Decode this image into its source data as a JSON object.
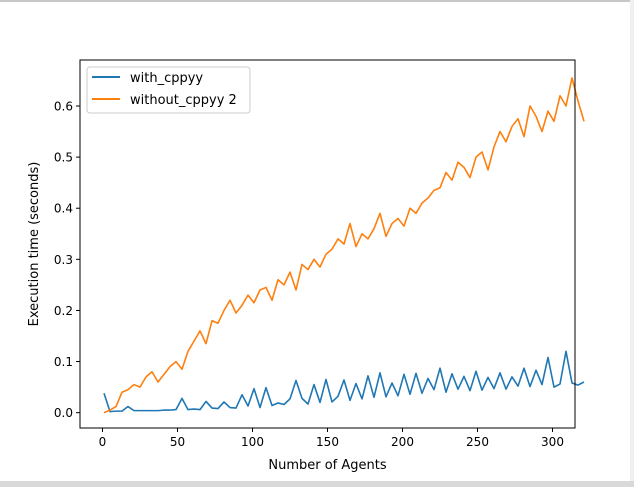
{
  "chart_data": {
    "type": "line",
    "title": "",
    "xlabel": "Number of Agents",
    "ylabel": "Execution time (seconds)",
    "xlim": [
      -15,
      315
    ],
    "ylim": [
      -0.03,
      0.69
    ],
    "xticks": [
      0,
      50,
      100,
      150,
      200,
      250,
      300
    ],
    "xtick_labels": [
      "0",
      "50",
      "100",
      "150",
      "200",
      "250",
      "300"
    ],
    "yticks": [
      0.0,
      0.1,
      0.2,
      0.3,
      0.4,
      0.5,
      0.6
    ],
    "ytick_labels": [
      "0.0",
      "0.1",
      "0.2",
      "0.3",
      "0.4",
      "0.5",
      "0.6"
    ],
    "grid": false,
    "legend_position": "upper-left",
    "x_start": 1,
    "x_step": 4,
    "series": [
      {
        "name": "with_cppyy",
        "color": "#1f77b4",
        "values": [
          0.038,
          0.002,
          0.003,
          0.003,
          0.012,
          0.004,
          0.004,
          0.004,
          0.004,
          0.004,
          0.005,
          0.005,
          0.006,
          0.028,
          0.006,
          0.007,
          0.006,
          0.022,
          0.009,
          0.008,
          0.021,
          0.01,
          0.009,
          0.035,
          0.013,
          0.047,
          0.01,
          0.049,
          0.014,
          0.019,
          0.016,
          0.027,
          0.063,
          0.028,
          0.017,
          0.055,
          0.02,
          0.065,
          0.021,
          0.032,
          0.064,
          0.024,
          0.057,
          0.027,
          0.072,
          0.03,
          0.078,
          0.031,
          0.058,
          0.033,
          0.075,
          0.036,
          0.077,
          0.038,
          0.067,
          0.045,
          0.087,
          0.04,
          0.076,
          0.046,
          0.071,
          0.043,
          0.081,
          0.044,
          0.069,
          0.047,
          0.078,
          0.046,
          0.07,
          0.052,
          0.087,
          0.051,
          0.083,
          0.055,
          0.108,
          0.05,
          0.056,
          0.12,
          0.058,
          0.054,
          0.06
        ]
      },
      {
        "name": "without_cppyy 2",
        "color": "#ff7f0e",
        "values": [
          0.0,
          0.005,
          0.012,
          0.04,
          0.045,
          0.055,
          0.05,
          0.07,
          0.08,
          0.06,
          0.075,
          0.09,
          0.1,
          0.085,
          0.12,
          0.14,
          0.16,
          0.135,
          0.18,
          0.175,
          0.2,
          0.22,
          0.195,
          0.21,
          0.23,
          0.215,
          0.24,
          0.245,
          0.22,
          0.26,
          0.25,
          0.275,
          0.24,
          0.29,
          0.28,
          0.3,
          0.285,
          0.31,
          0.32,
          0.34,
          0.33,
          0.37,
          0.325,
          0.35,
          0.34,
          0.36,
          0.39,
          0.345,
          0.37,
          0.38,
          0.365,
          0.4,
          0.39,
          0.41,
          0.42,
          0.435,
          0.44,
          0.47,
          0.455,
          0.49,
          0.48,
          0.46,
          0.5,
          0.51,
          0.475,
          0.52,
          0.55,
          0.53,
          0.56,
          0.575,
          0.54,
          0.6,
          0.58,
          0.55,
          0.59,
          0.57,
          0.62,
          0.6,
          0.655,
          0.61,
          0.57
        ]
      }
    ]
  }
}
